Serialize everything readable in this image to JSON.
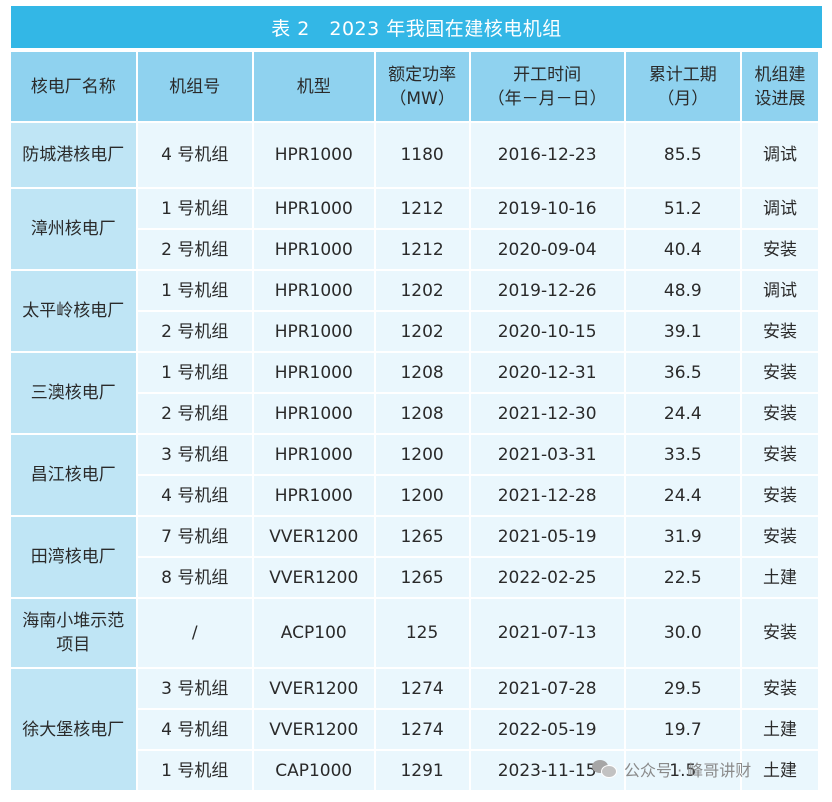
{
  "title": "表 2　2023 年我国在建核电机组",
  "headers": [
    "核电厂名称",
    "机组号",
    "机型",
    "额定功率\n（MW）",
    "开工时间\n（年－月－日）",
    "累计工期\n（月）",
    "机组建\n设进展"
  ],
  "rows": [
    {
      "plant": "防城港核电厂",
      "unit": "4 号机组",
      "model": "HPR1000",
      "power": "1180",
      "start": "2016-12-23",
      "duration": "85.5",
      "progress": "调试"
    },
    {
      "plant": "漳州核电厂",
      "unit": "1 号机组",
      "model": "HPR1000",
      "power": "1212",
      "start": "2019-10-16",
      "duration": "51.2",
      "progress": "调试"
    },
    {
      "plant": "",
      "unit": "2 号机组",
      "model": "HPR1000",
      "power": "1212",
      "start": "2020-09-04",
      "duration": "40.4",
      "progress": "安装"
    },
    {
      "plant": "太平岭核电厂",
      "unit": "1 号机组",
      "model": "HPR1000",
      "power": "1202",
      "start": "2019-12-26",
      "duration": "48.9",
      "progress": "调试"
    },
    {
      "plant": "",
      "unit": "2 号机组",
      "model": "HPR1000",
      "power": "1202",
      "start": "2020-10-15",
      "duration": "39.1",
      "progress": "安装"
    },
    {
      "plant": "三澳核电厂",
      "unit": "1 号机组",
      "model": "HPR1000",
      "power": "1208",
      "start": "2020-12-31",
      "duration": "36.5",
      "progress": "安装"
    },
    {
      "plant": "",
      "unit": "2 号机组",
      "model": "HPR1000",
      "power": "1208",
      "start": "2021-12-30",
      "duration": "24.4",
      "progress": "安装"
    },
    {
      "plant": "昌江核电厂",
      "unit": "3 号机组",
      "model": "HPR1000",
      "power": "1200",
      "start": "2021-03-31",
      "duration": "33.5",
      "progress": "安装"
    },
    {
      "plant": "",
      "unit": "4 号机组",
      "model": "HPR1000",
      "power": "1200",
      "start": "2021-12-28",
      "duration": "24.4",
      "progress": "安装"
    },
    {
      "plant": "田湾核电厂",
      "unit": "7 号机组",
      "model": "VVER1200",
      "power": "1265",
      "start": "2021-05-19",
      "duration": "31.9",
      "progress": "安装"
    },
    {
      "plant": "",
      "unit": "8 号机组",
      "model": "VVER1200",
      "power": "1265",
      "start": "2022-02-25",
      "duration": "22.5",
      "progress": "土建"
    },
    {
      "plant": "海南小堆示范\n项目",
      "unit": "/",
      "model": "ACP100",
      "power": "125",
      "start": "2021-07-13",
      "duration": "30.0",
      "progress": "安装"
    },
    {
      "plant": "徐大堡核电厂",
      "unit": "3 号机组",
      "model": "VVER1200",
      "power": "1274",
      "start": "2021-07-28",
      "duration": "29.5",
      "progress": "安装"
    },
    {
      "plant": "",
      "unit": "4 号机组",
      "model": "VVER1200",
      "power": "1274",
      "start": "2022-05-19",
      "duration": "19.7",
      "progress": "土建"
    },
    {
      "plant": "",
      "unit": "1 号机组",
      "model": "CAP1000",
      "power": "1291",
      "start": "2023-11-15",
      "duration": "1.5",
      "progress": "土建"
    }
  ],
  "watermark": "公众号 · 峰哥讲财"
}
